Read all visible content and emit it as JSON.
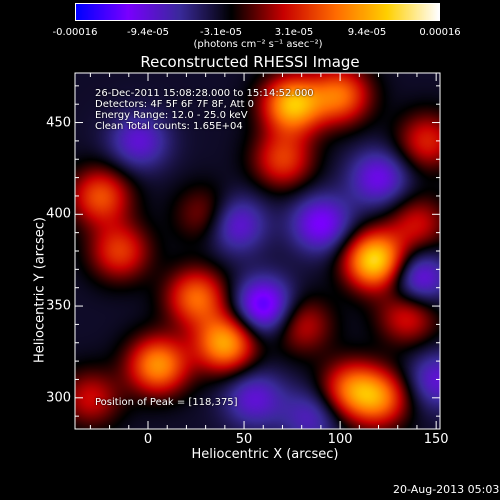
{
  "chart_data": {
    "type": "heatmap",
    "title": "Reconstructed RHESSI Image",
    "xlabel": "Heliocentric X (arcsec)",
    "ylabel": "Heliocentric Y (arcsec)",
    "xlim": [
      -38,
      152
    ],
    "ylim": [
      283,
      477
    ],
    "x_ticks": [
      0,
      50,
      100,
      150
    ],
    "x_tick_labels": [
      "0",
      "50",
      "100",
      "150"
    ],
    "y_ticks": [
      300,
      350,
      400,
      450
    ],
    "y_tick_labels": [
      "300",
      "350",
      "400",
      "450"
    ],
    "colorbar": {
      "min": -0.00016,
      "max": 0.00016,
      "tick_labels": [
        "-0.00016",
        "-9.4e-05",
        "-3.1e-05",
        "3.1e-05",
        "9.4e-05",
        "0.00016"
      ],
      "units_label": "(photons cm⁻² s⁻¹ asec⁻²)",
      "colormap": [
        "#0000ff",
        "#7a00ff",
        "#3a2a9a",
        "#000000",
        "#c80000",
        "#ff6a00",
        "#ffd000",
        "#ffffff"
      ]
    },
    "annotations": [
      "26-Dec-2011 15:08:28.000 to 15:14:52.000",
      "Detectors: 4F 5F 6F 7F 8F, Att 0",
      "Energy Range: 12.0 - 25.0 keV",
      "Clean     Total counts: 1.65E+04",
      "Position of Peak = [118,375]"
    ],
    "peak": {
      "x": 118,
      "y": 375
    },
    "sources": [
      {
        "x": 118,
        "y": 375,
        "value": 0.00016
      },
      {
        "x": -25,
        "y": 410,
        "value": 9e-05
      },
      {
        "x": -15,
        "y": 380,
        "value": 8e-05
      },
      {
        "x": 5,
        "y": 318,
        "value": 0.00012
      },
      {
        "x": 40,
        "y": 330,
        "value": 0.00013
      },
      {
        "x": 25,
        "y": 355,
        "value": 0.0001
      },
      {
        "x": 75,
        "y": 460,
        "value": 0.00014
      },
      {
        "x": 100,
        "y": 465,
        "value": 0.0001
      },
      {
        "x": 70,
        "y": 430,
        "value": 8e-05
      },
      {
        "x": 145,
        "y": 440,
        "value": 7e-05
      },
      {
        "x": 140,
        "y": 395,
        "value": 6e-05
      },
      {
        "x": 105,
        "y": 305,
        "value": 9e-05
      },
      {
        "x": 120,
        "y": 300,
        "value": 0.0001
      },
      {
        "x": -30,
        "y": 300,
        "value": 6e-05
      },
      {
        "x": 135,
        "y": 345,
        "value": 7e-05
      },
      {
        "x": 30,
        "y": 400,
        "value": 5e-05
      },
      {
        "x": 80,
        "y": 340,
        "value": 6e-05
      },
      {
        "x": 55,
        "y": 300,
        "value": -6e-05
      },
      {
        "x": 45,
        "y": 395,
        "value": -7e-05
      },
      {
        "x": 60,
        "y": 350,
        "value": -0.0001
      },
      {
        "x": 90,
        "y": 395,
        "value": -8e-05
      },
      {
        "x": 120,
        "y": 420,
        "value": -7e-05
      },
      {
        "x": -5,
        "y": 440,
        "value": -6e-05
      },
      {
        "x": 140,
        "y": 365,
        "value": -8e-05
      },
      {
        "x": 150,
        "y": 310,
        "value": -6e-05
      },
      {
        "x": 85,
        "y": 290,
        "value": -5e-05
      }
    ]
  },
  "footer": {
    "date": "20-Aug-2013 05:03"
  }
}
